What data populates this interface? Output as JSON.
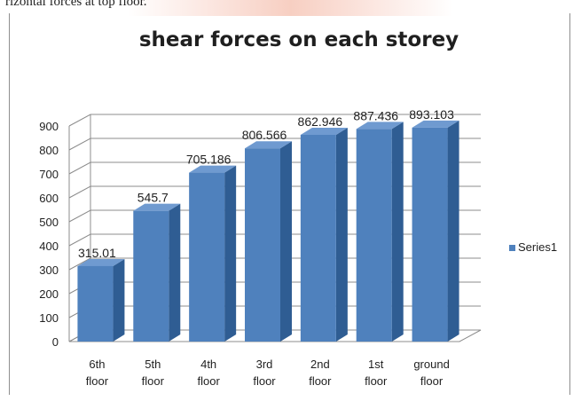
{
  "page": {
    "top_text": "rizontal forces at top floor."
  },
  "chart_data": {
    "type": "bar",
    "title": "shear forces on each storey",
    "xlabel": "",
    "ylabel": "",
    "categories": [
      [
        "6th",
        "floor"
      ],
      [
        "5th",
        "floor"
      ],
      [
        "4th",
        "floor"
      ],
      [
        "3rd",
        "floor"
      ],
      [
        "2nd",
        "floor"
      ],
      [
        "1st",
        "floor"
      ],
      [
        "ground",
        "floor"
      ]
    ],
    "series": [
      {
        "name": "Series1",
        "values": [
          315.01,
          545.7,
          705.186,
          806.566,
          862.946,
          887.436,
          893.103
        ],
        "labels": [
          "315.01",
          "545.7",
          "705.186",
          "806.566",
          "862.946",
          "887.436",
          "893.103"
        ]
      }
    ],
    "ylim": [
      0,
      900
    ],
    "yticks": [
      0,
      100,
      200,
      300,
      400,
      500,
      600,
      700,
      800,
      900
    ],
    "grid": true,
    "legend": "right",
    "style": "3d-column",
    "colors": {
      "front": "#4f81bd",
      "side": "#2f5d93",
      "top": "#6f9ad0",
      "grid": "#8c8c8c",
      "text": "#1f1f1f"
    }
  }
}
